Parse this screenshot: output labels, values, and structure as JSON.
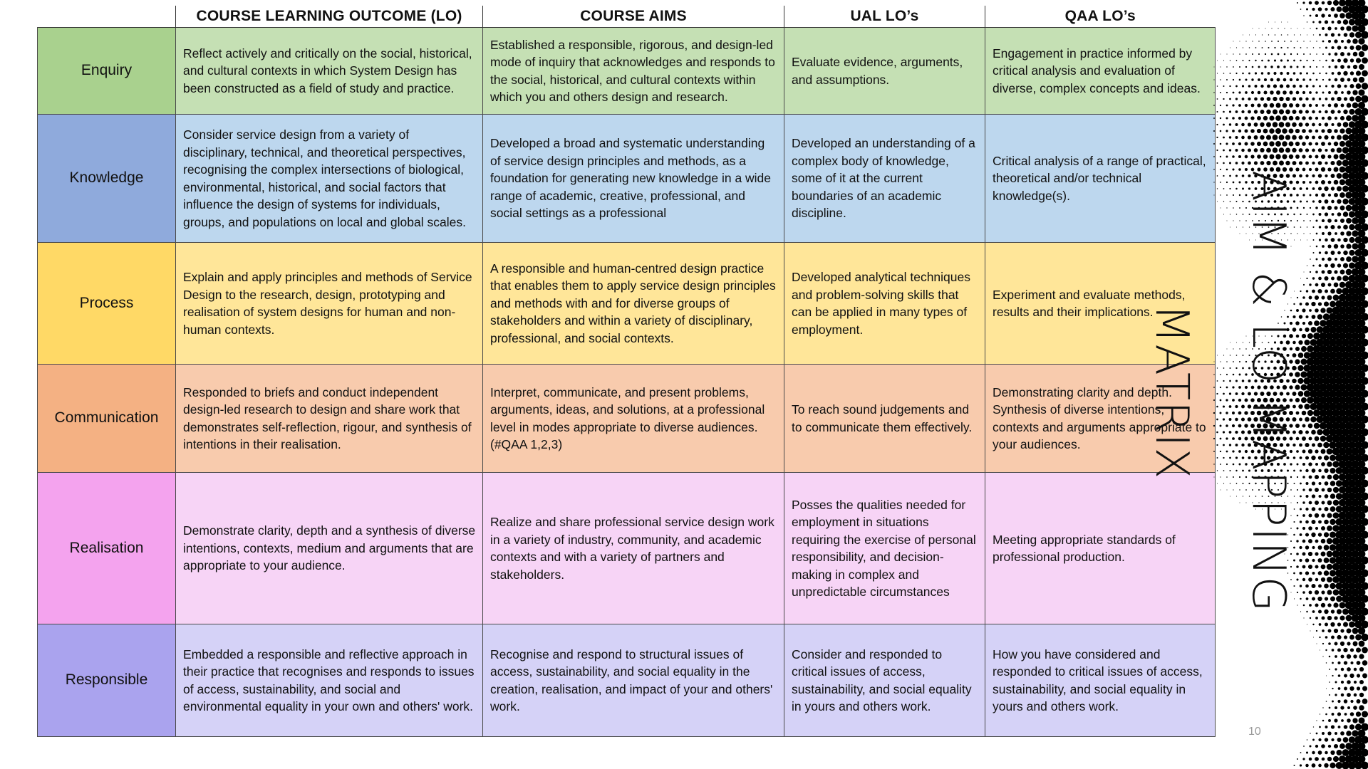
{
  "slide": {
    "title": "AIM & LO MAPPING MATRIX",
    "page_number": "10"
  },
  "table": {
    "headers": [
      "",
      "COURSE LEARNING OUTCOME (LO)",
      "COURSE AIMS",
      "UAL LO’s",
      "QAA LO’s"
    ],
    "rows": [
      {
        "category": "Enquiry",
        "lo": "Reflect actively and critically on the social, historical, and cultural contexts in which System Design has been constructed as a field of study and practice.",
        "aims": "Established a responsible, rigorous, and design-led mode of inquiry that acknowledges and responds to the social, historical, and cultural contexts within which you and others design and research.",
        "ual": "Evaluate evidence, arguments, and assumptions.",
        "qaa": "Engagement in practice informed by critical analysis and evaluation of diverse, complex concepts and ideas."
      },
      {
        "category": "Knowledge",
        "lo": "Consider service design from a variety of disciplinary, technical, and theoretical perspectives, recognising the complex intersections of biological, environmental, historical, and social factors that influence the design of systems for individuals, groups, and populations on local and global scales.",
        "aims": "Developed a broad and systematic understanding of service design principles and methods, as a foundation for generating new knowledge in a wide range of academic, creative, professional, and social settings as a professional",
        "ual": "Developed an understanding of a complex body of knowledge, some of it at the current boundaries of an academic discipline.",
        "qaa": "Critical analysis of a range of practical, theoretical and/or technical knowledge(s)."
      },
      {
        "category": "Process",
        "lo": "Explain and apply principles and methods of Service Design to the research, design, prototyping and realisation of system designs for human and non-human contexts.",
        "aims": "A responsible and human-centred design practice that enables them to apply service design principles and methods with and for diverse groups of stakeholders and within a variety of disciplinary, professional, and social contexts.",
        "ual": "Developed analytical techniques and problem-solving skills that can be applied in many types of employment.",
        "qaa": "Experiment and evaluate methods, results and their implications."
      },
      {
        "category": "Communication",
        "lo": "Responded to briefs and conduct independent design-led research to design and share work that demonstrates self-reflection, rigour, and synthesis of intentions in their realisation.",
        "aims": "Interpret, communicate, and present problems, arguments, ideas, and solutions, at a professional level in modes appropriate to diverse audiences. (#QAA 1,2,3)",
        "ual": "To reach sound judgements and to communicate them effectively.",
        "qaa": "Demonstrating clarity and depth. Synthesis of diverse intentions, contexts and arguments appropriate to your audiences."
      },
      {
        "category": "Realisation",
        "lo": "Demonstrate clarity, depth and a synthesis of diverse intentions, contexts, medium and arguments that are appropriate to your audience.",
        "aims": "Realize and share professional service design work in a variety of industry, community, and academic contexts and with a variety of partners and stakeholders.",
        "ual": "Posses the qualities needed for employment in situations requiring the exercise of personal responsibility, and decision- making in complex and unpredictable circumstances",
        "qaa": "Meeting appropriate standards of professional production."
      },
      {
        "category": "Responsible",
        "lo": "Embedded a responsible and reflective approach in their practice that recognises and responds to issues of access, sustainability, and social and environmental equality in your own and others' work.",
        "aims": "Recognise and respond to structural issues of access, sustainability, and social equality in the creation, realisation, and impact of your and others' work.",
        "ual": "Consider and responded to critical issues of access, sustainability,   and social equality in yours and others work.",
        "qaa": "How you have considered and responded to critical issues of access, sustainability, and social equality in yours and others work."
      }
    ]
  },
  "colors": {
    "enquiry": {
      "label": "#a9d18e",
      "cell": "#c5e0b4"
    },
    "knowledge": {
      "label": "#8faadc",
      "cell": "#bdd7ee"
    },
    "process": {
      "label": "#ffd966",
      "cell": "#ffe699"
    },
    "communication": {
      "label": "#f4b183",
      "cell": "#f8cbad"
    },
    "realisation": {
      "label": "#f4a3ee",
      "cell": "#f7d4f6"
    },
    "responsible": {
      "label": "#aaa3ee",
      "cell": "#d5d2f7"
    }
  }
}
